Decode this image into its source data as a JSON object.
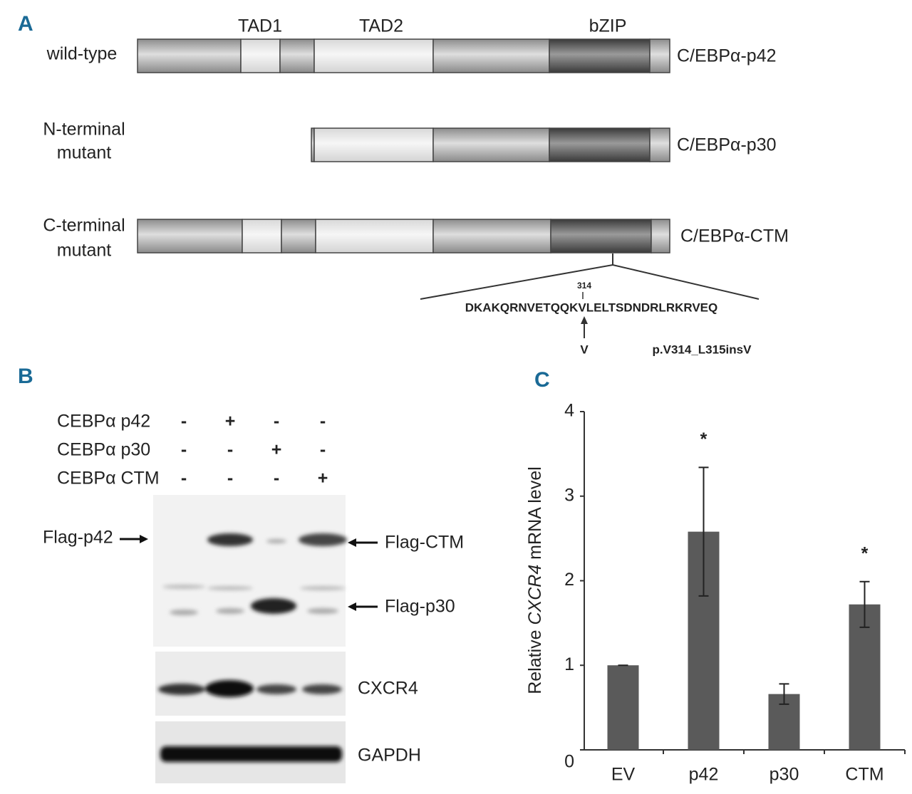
{
  "panel_a": {
    "label": "A",
    "domains": [
      "TAD1",
      "TAD2",
      "bZIP"
    ],
    "constructs": [
      {
        "lines": [
          "wild-type"
        ],
        "name": "C/EBPα-p42"
      },
      {
        "lines": [
          "N-terminal",
          "mutant"
        ],
        "name": "C/EBPα-p30"
      },
      {
        "lines": [
          "C-terminal",
          "mutant"
        ],
        "name": "C/EBPα-CTM"
      }
    ],
    "position": "314",
    "sequence": "DKAKQRNVETQQKVLELTSDNDRLRKRVEQ",
    "inserted": "V",
    "mutation": "p.V314_L315insV"
  },
  "panel_b": {
    "label": "B",
    "conditions": [
      {
        "name": "CEBPα p42",
        "signs": [
          "-",
          "+",
          "-",
          "-"
        ]
      },
      {
        "name": "CEBPα p30",
        "signs": [
          "-",
          "-",
          "+",
          "-"
        ]
      },
      {
        "name": "CEBPα CTM",
        "signs": [
          "-",
          "-",
          "-",
          "+"
        ]
      }
    ],
    "band_labels": [
      "Flag-p42",
      "Flag-CTM",
      "Flag-p30",
      "CXCR4",
      "GAPDH"
    ]
  },
  "panel_c": {
    "label": "C"
  },
  "chart_data": {
    "type": "bar",
    "ylabel_prefix": "Relative",
    "ylabel_italic": "CXCR4",
    "ylabel_suffix": "mRNA level",
    "categories": [
      "EV",
      "p42",
      "p30",
      "CTM"
    ],
    "values": [
      1.0,
      2.58,
      0.66,
      1.72
    ],
    "errors": [
      0,
      0.76,
      0.12,
      0.27
    ],
    "color": "#5a5a5a",
    "ylim": [
      0,
      4
    ],
    "yticks": [
      0,
      1,
      2,
      3,
      4
    ],
    "annotations": [
      {
        "text": "*",
        "category": "p42"
      },
      {
        "text": "*",
        "category": "CTM"
      }
    ]
  }
}
